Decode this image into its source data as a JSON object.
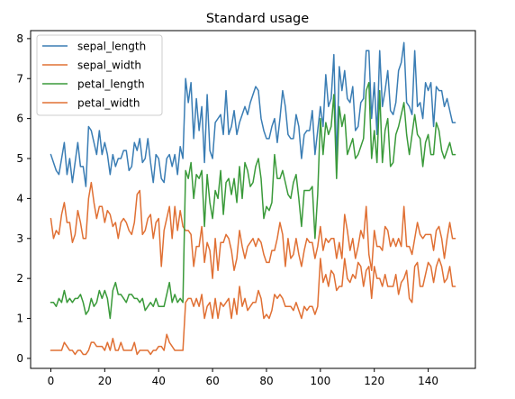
{
  "chart_data": {
    "type": "line",
    "title": "Standard usage",
    "xlabel": "",
    "ylabel": "",
    "xlim": [
      -7.5,
      157.5
    ],
    "ylim": [
      -0.25,
      8.2
    ],
    "x_ticks": [
      0,
      20,
      40,
      60,
      80,
      100,
      120,
      140
    ],
    "y_ticks": [
      0,
      1,
      2,
      3,
      4,
      5,
      6,
      7,
      8
    ],
    "grid": false,
    "legend_position": "top-left",
    "x": [
      0,
      1,
      2,
      3,
      4,
      5,
      6,
      7,
      8,
      9,
      10,
      11,
      12,
      13,
      14,
      15,
      16,
      17,
      18,
      19,
      20,
      21,
      22,
      23,
      24,
      25,
      26,
      27,
      28,
      29,
      30,
      31,
      32,
      33,
      34,
      35,
      36,
      37,
      38,
      39,
      40,
      41,
      42,
      43,
      44,
      45,
      46,
      47,
      48,
      49,
      50,
      51,
      52,
      53,
      54,
      55,
      56,
      57,
      58,
      59,
      60,
      61,
      62,
      63,
      64,
      65,
      66,
      67,
      68,
      69,
      70,
      71,
      72,
      73,
      74,
      75,
      76,
      77,
      78,
      79,
      80,
      81,
      82,
      83,
      84,
      85,
      86,
      87,
      88,
      89,
      90,
      91,
      92,
      93,
      94,
      95,
      96,
      97,
      98,
      99,
      100,
      101,
      102,
      103,
      104,
      105,
      106,
      107,
      108,
      109,
      110,
      111,
      112,
      113,
      114,
      115,
      116,
      117,
      118,
      119,
      120,
      121,
      122,
      123,
      124,
      125,
      126,
      127,
      128,
      129,
      130,
      131,
      132,
      133,
      134,
      135,
      136,
      137,
      138,
      139,
      140,
      141,
      142,
      143,
      144,
      145,
      146,
      147,
      148,
      149,
      150
    ],
    "series": [
      {
        "name": "sepal_length",
        "color": "#3a7db4",
        "values": [
          5.1,
          4.9,
          4.7,
          4.6,
          5.0,
          5.4,
          4.6,
          5.0,
          4.4,
          4.9,
          5.4,
          4.8,
          4.8,
          4.3,
          5.8,
          5.7,
          5.4,
          5.1,
          5.7,
          5.1,
          5.4,
          5.1,
          4.6,
          5.1,
          4.8,
          5.0,
          5.0,
          5.2,
          5.2,
          4.7,
          4.8,
          5.4,
          5.2,
          5.5,
          4.9,
          5.0,
          5.5,
          4.9,
          4.4,
          5.1,
          5.0,
          4.5,
          4.4,
          5.0,
          5.1,
          4.8,
          5.1,
          4.6,
          5.3,
          5.0,
          7.0,
          6.4,
          6.9,
          5.5,
          6.5,
          5.7,
          6.3,
          4.9,
          6.6,
          5.2,
          5.0,
          5.9,
          6.0,
          6.1,
          5.6,
          6.7,
          5.6,
          5.8,
          6.2,
          5.6,
          5.9,
          6.1,
          6.3,
          6.1,
          6.4,
          6.6,
          6.8,
          6.7,
          6.0,
          5.7,
          5.5,
          5.5,
          5.8,
          6.0,
          5.4,
          6.0,
          6.7,
          6.3,
          5.6,
          5.5,
          5.5,
          6.1,
          5.8,
          5.0,
          5.6,
          5.7,
          5.7,
          6.2,
          5.1,
          5.7,
          6.3,
          5.8,
          7.1,
          6.3,
          6.5,
          7.6,
          4.9,
          7.3,
          6.7,
          7.2,
          6.5,
          6.4,
          6.8,
          5.7,
          5.8,
          6.4,
          6.5,
          7.7,
          7.7,
          6.0,
          6.9,
          5.6,
          7.7,
          6.3,
          6.7,
          7.2,
          6.2,
          6.1,
          6.4,
          7.2,
          7.4,
          7.9,
          6.4,
          6.3,
          6.1,
          7.7,
          6.3,
          6.4,
          6.0,
          6.9,
          6.7,
          6.9,
          5.8,
          6.8,
          6.7,
          6.7,
          6.3,
          6.5,
          6.2,
          5.9,
          5.9
        ]
      },
      {
        "name": "sepal_width",
        "color": "#e07034",
        "values": [
          3.5,
          3.0,
          3.2,
          3.1,
          3.6,
          3.9,
          3.4,
          3.4,
          2.9,
          3.1,
          3.7,
          3.4,
          3.0,
          3.0,
          4.0,
          4.4,
          3.9,
          3.5,
          3.8,
          3.8,
          3.4,
          3.7,
          3.6,
          3.3,
          3.4,
          3.0,
          3.4,
          3.5,
          3.4,
          3.2,
          3.1,
          3.4,
          4.1,
          4.2,
          3.1,
          3.2,
          3.5,
          3.6,
          3.0,
          3.4,
          3.5,
          2.3,
          3.2,
          3.5,
          3.8,
          3.0,
          3.8,
          3.2,
          3.7,
          3.3,
          3.2,
          3.2,
          3.1,
          2.3,
          2.8,
          2.8,
          3.3,
          2.4,
          2.9,
          2.7,
          2.0,
          3.0,
          2.2,
          2.9,
          2.9,
          3.1,
          3.0,
          2.7,
          2.2,
          2.5,
          3.2,
          2.8,
          2.5,
          2.8,
          2.9,
          3.0,
          2.8,
          3.0,
          2.9,
          2.6,
          2.4,
          2.4,
          2.7,
          2.7,
          3.0,
          3.4,
          3.1,
          2.3,
          3.0,
          2.5,
          2.6,
          3.0,
          2.6,
          2.3,
          2.7,
          3.0,
          2.9,
          2.9,
          2.5,
          2.8,
          3.3,
          2.7,
          3.0,
          2.9,
          3.0,
          3.0,
          2.5,
          2.9,
          2.5,
          3.6,
          3.2,
          2.7,
          3.0,
          2.5,
          2.8,
          3.2,
          3.0,
          3.8,
          2.6,
          2.2,
          3.2,
          2.8,
          2.8,
          2.7,
          3.3,
          3.2,
          2.8,
          3.0,
          2.8,
          3.0,
          2.8,
          3.8,
          2.8,
          2.8,
          2.6,
          3.0,
          3.4,
          3.1,
          3.0,
          3.1,
          3.1,
          3.1,
          2.7,
          3.2,
          3.3,
          3.0,
          2.5,
          3.0,
          3.4,
          3.0,
          3.0
        ]
      },
      {
        "name": "petal_length",
        "color": "#3a9a3a",
        "values": [
          1.4,
          1.4,
          1.3,
          1.5,
          1.4,
          1.7,
          1.4,
          1.5,
          1.4,
          1.5,
          1.5,
          1.6,
          1.4,
          1.1,
          1.2,
          1.5,
          1.3,
          1.4,
          1.7,
          1.5,
          1.7,
          1.5,
          1.0,
          1.7,
          1.9,
          1.6,
          1.6,
          1.5,
          1.4,
          1.6,
          1.6,
          1.5,
          1.5,
          1.4,
          1.5,
          1.2,
          1.3,
          1.4,
          1.3,
          1.5,
          1.3,
          1.3,
          1.3,
          1.6,
          1.9,
          1.4,
          1.6,
          1.4,
          1.5,
          1.4,
          4.7,
          4.5,
          4.9,
          4.0,
          4.6,
          4.5,
          4.7,
          3.3,
          4.6,
          3.9,
          3.5,
          4.2,
          4.0,
          4.7,
          3.6,
          4.4,
          4.5,
          4.1,
          4.5,
          3.9,
          4.8,
          4.0,
          4.9,
          4.7,
          4.3,
          4.4,
          4.8,
          5.0,
          4.5,
          3.5,
          3.8,
          3.7,
          3.9,
          5.1,
          4.5,
          4.5,
          4.7,
          4.4,
          4.1,
          4.0,
          4.4,
          4.6,
          4.0,
          3.3,
          4.2,
          4.2,
          4.2,
          4.3,
          3.0,
          4.1,
          6.0,
          5.1,
          5.9,
          5.6,
          5.8,
          6.6,
          4.5,
          6.3,
          5.8,
          6.1,
          5.1,
          5.3,
          5.5,
          5.0,
          5.1,
          5.3,
          5.5,
          6.7,
          6.9,
          5.0,
          5.7,
          4.9,
          6.7,
          4.9,
          5.7,
          6.0,
          4.8,
          4.9,
          5.6,
          5.8,
          6.1,
          6.4,
          5.6,
          5.1,
          5.6,
          6.1,
          5.6,
          5.5,
          4.8,
          5.4,
          5.6,
          5.1,
          5.1,
          5.9,
          5.7,
          5.2,
          5.0,
          5.2,
          5.4,
          5.1,
          5.1
        ]
      },
      {
        "name": "petal_width",
        "color": "#e07034",
        "values": [
          0.2,
          0.2,
          0.2,
          0.2,
          0.2,
          0.4,
          0.3,
          0.2,
          0.2,
          0.1,
          0.2,
          0.2,
          0.1,
          0.1,
          0.2,
          0.4,
          0.4,
          0.3,
          0.3,
          0.3,
          0.2,
          0.4,
          0.2,
          0.5,
          0.2,
          0.2,
          0.4,
          0.2,
          0.2,
          0.2,
          0.2,
          0.4,
          0.1,
          0.2,
          0.2,
          0.2,
          0.2,
          0.1,
          0.2,
          0.2,
          0.3,
          0.3,
          0.2,
          0.6,
          0.4,
          0.3,
          0.2,
          0.2,
          0.2,
          0.2,
          1.4,
          1.5,
          1.5,
          1.3,
          1.5,
          1.3,
          1.6,
          1.0,
          1.3,
          1.4,
          1.0,
          1.5,
          1.0,
          1.4,
          1.3,
          1.4,
          1.5,
          1.0,
          1.5,
          1.1,
          1.8,
          1.3,
          1.5,
          1.2,
          1.3,
          1.4,
          1.4,
          1.7,
          1.5,
          1.0,
          1.1,
          1.0,
          1.2,
          1.6,
          1.5,
          1.6,
          1.5,
          1.3,
          1.3,
          1.3,
          1.2,
          1.4,
          1.2,
          1.0,
          1.3,
          1.2,
          1.3,
          1.3,
          1.1,
          1.3,
          2.5,
          1.9,
          2.1,
          1.8,
          2.2,
          2.1,
          1.7,
          1.8,
          1.8,
          2.5,
          2.0,
          1.9,
          2.1,
          2.0,
          2.4,
          2.3,
          1.8,
          2.2,
          2.3,
          1.5,
          2.3,
          2.0,
          2.0,
          1.8,
          2.1,
          1.8,
          1.8,
          1.8,
          2.1,
          1.6,
          1.9,
          2.0,
          2.2,
          1.5,
          1.4,
          2.3,
          2.4,
          1.8,
          1.8,
          2.1,
          2.4,
          2.3,
          1.9,
          2.3,
          2.5,
          2.3,
          1.9,
          2.0,
          2.3,
          1.8,
          1.8
        ]
      }
    ]
  }
}
